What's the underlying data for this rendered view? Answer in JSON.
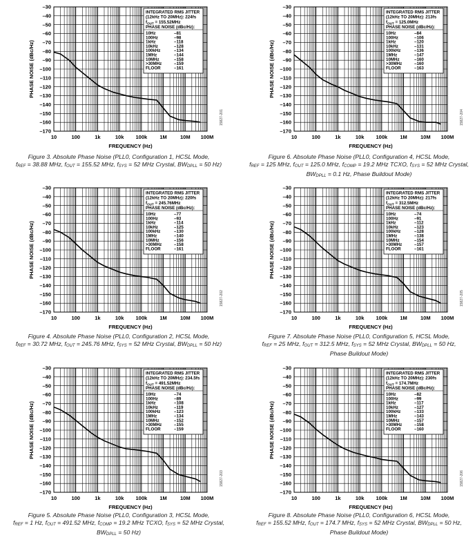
{
  "chart_data": [
    {
      "type": "line",
      "xlabel": "FREQUENCY (Hz)",
      "ylabel": "PHASE NOISE (dBc/Hz)",
      "ylim": [
        -170,
        -30
      ],
      "xlim": [
        10,
        100000000
      ],
      "xscale": "log",
      "x_ticks": [
        "10",
        "100",
        "1k",
        "10k",
        "100k",
        "1M",
        "10M",
        "100M"
      ],
      "y_ticks": [
        "–30",
        "–40",
        "–50",
        "–60",
        "–70",
        "–80",
        "–90",
        "–100",
        "–110",
        "–120",
        "–130",
        "–140",
        "–150",
        "–160",
        "–170"
      ],
      "legend": {
        "l1": "INTEGRATED RMS JITTER",
        "l2": "(12kHz TO 20MHz): 224fs",
        "l3": "f",
        "l3sub": "OUT",
        "l3rest": " = 155.52MHz",
        "l4": "PHASE NOISE (dBc/Hz):",
        "rows": [
          [
            "10Hz",
            "–81"
          ],
          [
            "100Hz",
            "–98"
          ],
          [
            "1kHz",
            "–118"
          ],
          [
            "10kHz",
            "–128"
          ],
          [
            "100kHz",
            "–134"
          ],
          [
            "1MHz",
            "–144"
          ],
          [
            "10MHz",
            "–158"
          ],
          [
            ">30MHz",
            "–159"
          ],
          [
            "FLOOR",
            "–161"
          ]
        ]
      },
      "figure_id": "15827-201",
      "series": [
        {
          "x": [
            10,
            20,
            50,
            100,
            200,
            500,
            1000,
            2000,
            5000,
            10000,
            20000,
            50000,
            100000,
            200000,
            500000,
            1000000,
            2000000,
            5000000,
            10000000,
            30000000,
            50000000
          ],
          "y": [
            -81,
            -83,
            -90,
            -98,
            -104,
            -112,
            -118,
            -122,
            -126,
            -128,
            -130,
            -132,
            -133,
            -134,
            -135,
            -144,
            -153,
            -157,
            -158,
            -159,
            -160
          ]
        }
      ],
      "caption": {
        "title": "Figure 3. Absolute Phase Noise (PLL0, Configuration 1, HCSL Mode,",
        "line2": [
          [
            "f",
            ""
          ],
          [
            "REF",
            "sub"
          ],
          [
            " = 38.88 MHz, f",
            ""
          ],
          [
            "OUT",
            "sub"
          ],
          [
            " = 155.52 MHz, f",
            ""
          ],
          [
            "SYS",
            "sub"
          ],
          [
            " = 52 MHz Crystal, BW",
            ""
          ],
          [
            "DPLL",
            "sub"
          ],
          [
            " = 50 Hz)",
            ""
          ]
        ],
        "line3": []
      }
    },
    {
      "type": "line",
      "xlabel": "FREQUENCY (Hz)",
      "ylabel": "PHASE NOISE (dBc/Hz)",
      "ylim": [
        -170,
        -30
      ],
      "xlim": [
        10,
        100000000
      ],
      "xscale": "log",
      "x_ticks": [
        "10",
        "100",
        "1k",
        "10k",
        "100k",
        "1M",
        "10M",
        "100M"
      ],
      "y_ticks": [
        "–30",
        "–40",
        "–50",
        "–60",
        "–70",
        "–80",
        "–90",
        "–100",
        "–110",
        "–120",
        "–130",
        "–140",
        "–150",
        "–160",
        "–170"
      ],
      "legend": {
        "l1": "INTEGRATED RMS JITTER",
        "l2": "(12kHz TO 20MHz): 213fs",
        "l3": "f",
        "l3sub": "OUT",
        "l3rest": " = 125.0MHz",
        "l4": "PHASE NOISE (dBc/Hz):",
        "rows": [
          [
            "10Hz",
            "–84"
          ],
          [
            "100Hz",
            "–106"
          ],
          [
            "1kHz",
            "–120"
          ],
          [
            "10kHz",
            "–131"
          ],
          [
            "100kHz",
            "–136"
          ],
          [
            "1MHz",
            "–147"
          ],
          [
            "10MHz",
            "–160"
          ],
          [
            ">30MHz",
            "–160"
          ],
          [
            "FLOOR",
            "–163"
          ]
        ]
      },
      "figure_id": "15827-204",
      "series": [
        {
          "x": [
            10,
            20,
            50,
            100,
            200,
            500,
            1000,
            2000,
            5000,
            10000,
            20000,
            50000,
            100000,
            200000,
            500000,
            1000000,
            2000000,
            5000000,
            10000000,
            30000000,
            50000000
          ],
          "y": [
            -84,
            -90,
            -98,
            -106,
            -112,
            -117,
            -120,
            -124,
            -128,
            -131,
            -133,
            -135,
            -136,
            -137,
            -139,
            -147,
            -155,
            -159,
            -160,
            -160,
            -162
          ]
        }
      ],
      "caption": {
        "title": "Figure 6. Absolute Phase Noise (PLL0, Configuration 4, HCSL Mode,",
        "line2": [
          [
            "f",
            ""
          ],
          [
            "REF",
            "sub"
          ],
          [
            " = 125 MHz, f",
            ""
          ],
          [
            "OUT",
            "sub"
          ],
          [
            " = 125.0 MHz, f",
            ""
          ],
          [
            "COMP",
            "sub"
          ],
          [
            " = 19.2 MHz TCXO, f",
            ""
          ],
          [
            "SYS",
            "sub"
          ],
          [
            " = 52 MHz Crystal,",
            ""
          ]
        ],
        "line3": [
          [
            "BW",
            ""
          ],
          [
            "DPLL",
            "sub"
          ],
          [
            " = 0.1 Hz, Phase Buildout Mode)",
            ""
          ]
        ]
      }
    },
    {
      "type": "line",
      "xlabel": "FREQUENCY (Hz)",
      "ylabel": "PHASE NOISE (dBc/Hz)",
      "ylim": [
        -170,
        -30
      ],
      "xlim": [
        10,
        100000000
      ],
      "xscale": "log",
      "x_ticks": [
        "10",
        "100",
        "1k",
        "10k",
        "100k",
        "1M",
        "10M",
        "100M"
      ],
      "y_ticks": [
        "–30",
        "–40",
        "–50",
        "–60",
        "–70",
        "–80",
        "–90",
        "–100",
        "–110",
        "–120",
        "–130",
        "–140",
        "–150",
        "–160",
        "–170"
      ],
      "legend": {
        "l1": "INTEGRATED RMS JITTER",
        "l2": "(12kHz TO 20MHz): 220fs",
        "l3": "f",
        "l3sub": "OUT",
        "l3rest": " = 245.76MHz",
        "l4": "PHASE NOISE (dBc/Hz):",
        "rows": [
          [
            "10Hz",
            "–77"
          ],
          [
            "100Hz",
            "–93"
          ],
          [
            "1kHz",
            "–114"
          ],
          [
            "10kHz",
            "–125"
          ],
          [
            "100kHz",
            "–130"
          ],
          [
            "1MHz",
            "–140"
          ],
          [
            "10MHz",
            "–156"
          ],
          [
            ">30MHz",
            "–158"
          ],
          [
            "FLOOR",
            "–161"
          ]
        ]
      },
      "figure_id": "15827-202",
      "series": [
        {
          "x": [
            10,
            20,
            50,
            100,
            200,
            500,
            1000,
            2000,
            5000,
            10000,
            20000,
            50000,
            100000,
            200000,
            500000,
            1000000,
            2000000,
            5000000,
            10000000,
            30000000,
            50000000
          ],
          "y": [
            -77,
            -80,
            -86,
            -93,
            -100,
            -108,
            -114,
            -118,
            -122,
            -125,
            -127,
            -129,
            -130,
            -131,
            -133,
            -140,
            -149,
            -154,
            -156,
            -158,
            -160
          ]
        }
      ],
      "caption": {
        "title": "Figure 4. Absolute Phase Noise (PLL0, Configuration 2, HCSL Mode,",
        "line2": [
          [
            "f",
            ""
          ],
          [
            "REF",
            "sub"
          ],
          [
            " = 30.72 MHz, f",
            ""
          ],
          [
            "OUT",
            "sub"
          ],
          [
            " = 245.76 MHz, f",
            ""
          ],
          [
            "SYS",
            "sub"
          ],
          [
            " = 52 MHz Crystal, BW",
            ""
          ],
          [
            "DPLL",
            "sub"
          ],
          [
            " = 50 Hz)",
            ""
          ]
        ],
        "line3": []
      }
    },
    {
      "type": "line",
      "xlabel": "FREQUENCY (Hz)",
      "ylabel": "PHASE NOISE (dBc/Hz)",
      "ylim": [
        -170,
        -30
      ],
      "xlim": [
        10,
        100000000
      ],
      "xscale": "log",
      "x_ticks": [
        "10",
        "100",
        "1k",
        "10k",
        "100k",
        "1M",
        "10M",
        "100M"
      ],
      "y_ticks": [
        "–30",
        "–40",
        "–50",
        "–60",
        "–70",
        "–80",
        "–90",
        "–100",
        "–110",
        "–120",
        "–130",
        "–140",
        "–150",
        "–160",
        "–170"
      ],
      "legend": {
        "l1": "INTEGRATED RMS JITTER",
        "l2": "(12kHz TO 20MHz): 217fs",
        "l3": "f",
        "l3sub": "OUT",
        "l3rest": " = 312.5MHz",
        "l4": "PHASE NOISE (dBc/Hz):",
        "rows": [
          [
            "10Hz",
            "–74"
          ],
          [
            "100Hz",
            "–91"
          ],
          [
            "1kHz",
            "–112"
          ],
          [
            "10kHz",
            "–123"
          ],
          [
            "100kHz",
            "–128"
          ],
          [
            "1MHz",
            "–138"
          ],
          [
            "10MHz",
            "–154"
          ],
          [
            ">30MHz",
            "–157"
          ],
          [
            "FLOOR",
            "–161"
          ]
        ]
      },
      "figure_id": "15827-205",
      "series": [
        {
          "x": [
            10,
            20,
            50,
            100,
            200,
            500,
            1000,
            2000,
            5000,
            10000,
            20000,
            50000,
            100000,
            200000,
            500000,
            1000000,
            2000000,
            5000000,
            10000000,
            30000000,
            50000000
          ],
          "y": [
            -74,
            -77,
            -84,
            -91,
            -98,
            -106,
            -112,
            -116,
            -120,
            -123,
            -125,
            -127,
            -128,
            -129,
            -131,
            -138,
            -147,
            -152,
            -154,
            -157,
            -160
          ]
        }
      ],
      "caption": {
        "title": "Figure 7. Absolute Phase Noise (PLL0, Configuration 5, HCSL Mode,",
        "line2": [
          [
            "f",
            ""
          ],
          [
            "REF",
            "sub"
          ],
          [
            " = 25 MHz, f",
            ""
          ],
          [
            "OUT",
            "sub"
          ],
          [
            " = 312.5 MHz, f",
            ""
          ],
          [
            "SYS",
            "sub"
          ],
          [
            " = 52 MHz Crystal, BW",
            ""
          ],
          [
            "DPLL",
            "sub"
          ],
          [
            " = 50 Hz,",
            ""
          ]
        ],
        "line3": [
          [
            "Phase Buildout Mode)",
            ""
          ]
        ]
      }
    },
    {
      "type": "line",
      "xlabel": "FREQUENCY (Hz)",
      "ylabel": "PHASE NOISE (dBc/Hz)",
      "ylim": [
        -170,
        -30
      ],
      "xlim": [
        10,
        100000000
      ],
      "xscale": "log",
      "x_ticks": [
        "10",
        "100",
        "1k",
        "10k",
        "100k",
        "1M",
        "10M",
        "100M"
      ],
      "y_ticks": [
        "–30",
        "–40",
        "–50",
        "–60",
        "–70",
        "–80",
        "–90",
        "–100",
        "–110",
        "–120",
        "–130",
        "–140",
        "–150",
        "–160",
        "–170"
      ],
      "legend": {
        "l1": "INTEGRATED RMS JITTER",
        "l2": "(12kHz TO 20MHz): 234.5fs",
        "l3": "f",
        "l3sub": "OUT",
        "l3rest": " = 491.52MHz",
        "l4": "PHASE NOISE (dBc/Hz):",
        "rows": [
          [
            "10Hz",
            "–74"
          ],
          [
            "100Hz",
            "–89"
          ],
          [
            "1kHz",
            "–108"
          ],
          [
            "10kHz",
            "–119"
          ],
          [
            "100kHz",
            "–123"
          ],
          [
            "1MHz",
            "–134"
          ],
          [
            "10MHz",
            "–152"
          ],
          [
            ">30MHz",
            "–155"
          ],
          [
            "FLOOR",
            "–159"
          ]
        ]
      },
      "figure_id": "15827-203",
      "series": [
        {
          "x": [
            10,
            20,
            50,
            100,
            200,
            500,
            1000,
            2000,
            5000,
            10000,
            20000,
            50000,
            100000,
            200000,
            500000,
            1000000,
            2000000,
            5000000,
            10000000,
            30000000,
            50000000
          ],
          "y": [
            -74,
            -77,
            -83,
            -89,
            -95,
            -103,
            -108,
            -112,
            -116,
            -119,
            -121,
            -122,
            -123,
            -124,
            -126,
            -134,
            -144,
            -150,
            -152,
            -155,
            -158
          ]
        }
      ],
      "caption": {
        "title": "Figure 5. Absolute Phase Noise (PLL0, Configuration 3, HCSL Mode,",
        "line2": [
          [
            "f",
            ""
          ],
          [
            "REF",
            "sub"
          ],
          [
            " = 1 Hz, f",
            ""
          ],
          [
            "OUT",
            "sub"
          ],
          [
            " = 491.52 MHz, f",
            ""
          ],
          [
            "COMP",
            "sub"
          ],
          [
            " = 19.2 MHz TCXO, f",
            ""
          ],
          [
            "SYS",
            "sub"
          ],
          [
            " = 52 MHz Crystal,",
            ""
          ]
        ],
        "line3": [
          [
            "BW",
            ""
          ],
          [
            "DPLL",
            "sub"
          ],
          [
            " = 50 Hz)",
            ""
          ]
        ]
      }
    },
    {
      "type": "line",
      "xlabel": "FREQUENCY (Hz)",
      "ylabel": "PHASE NOISE (dBc/Hz)",
      "ylim": [
        -170,
        -30
      ],
      "xlim": [
        10,
        100000000
      ],
      "xscale": "log",
      "x_ticks": [
        "10",
        "100",
        "1k",
        "10k",
        "100k",
        "1M",
        "10M",
        "100M"
      ],
      "y_ticks": [
        "–30",
        "–40",
        "–50",
        "–60",
        "–70",
        "–80",
        "–90",
        "–100",
        "–110",
        "–120",
        "–130",
        "–140",
        "–150",
        "–160",
        "–170"
      ],
      "legend": {
        "l1": "INTEGRATED RMS JITTER",
        "l2": "(12kHz TO 20MHz): 230fs",
        "l3": "f",
        "l3sub": "OUT",
        "l3rest": " = 174.7MHz",
        "l4": "PHASE NOISE (dBc/Hz):",
        "rows": [
          [
            "10Hz",
            "–82"
          ],
          [
            "100Hz",
            "–99"
          ],
          [
            "1kHz",
            "–117"
          ],
          [
            "10kHz",
            "–127"
          ],
          [
            "100kHz",
            "–133"
          ],
          [
            "1MHz",
            "–143"
          ],
          [
            "10MHz",
            "–157"
          ],
          [
            ">30MHz",
            "–158"
          ],
          [
            "FLOOR",
            "–160"
          ]
        ]
      },
      "figure_id": "15827-206",
      "series": [
        {
          "x": [
            10,
            20,
            50,
            100,
            200,
            500,
            1000,
            2000,
            5000,
            10000,
            20000,
            50000,
            100000,
            200000,
            500000,
            1000000,
            2000000,
            5000000,
            10000000,
            30000000,
            50000000
          ],
          "y": [
            -82,
            -85,
            -92,
            -99,
            -105,
            -112,
            -117,
            -121,
            -125,
            -127,
            -129,
            -131,
            -133,
            -134,
            -135,
            -143,
            -151,
            -156,
            -157,
            -158,
            -159
          ]
        }
      ],
      "caption": {
        "title": "Figure 8. Absolute Phase Noise (PLL0, Configuration 6, HCSL Mode,",
        "line2": [
          [
            "f",
            ""
          ],
          [
            "REF",
            "sub"
          ],
          [
            " = 155.52 MHz, f",
            ""
          ],
          [
            "OUT",
            "sub"
          ],
          [
            " = 174.7 MHz, f",
            ""
          ],
          [
            "SYS",
            "sub"
          ],
          [
            " = 52 MHz Crystal, BW",
            ""
          ],
          [
            "DPLL",
            "sub"
          ],
          [
            " = 50 Hz,",
            ""
          ]
        ],
        "line3": [
          [
            "Phase Buildout Mode)",
            ""
          ]
        ]
      }
    }
  ]
}
